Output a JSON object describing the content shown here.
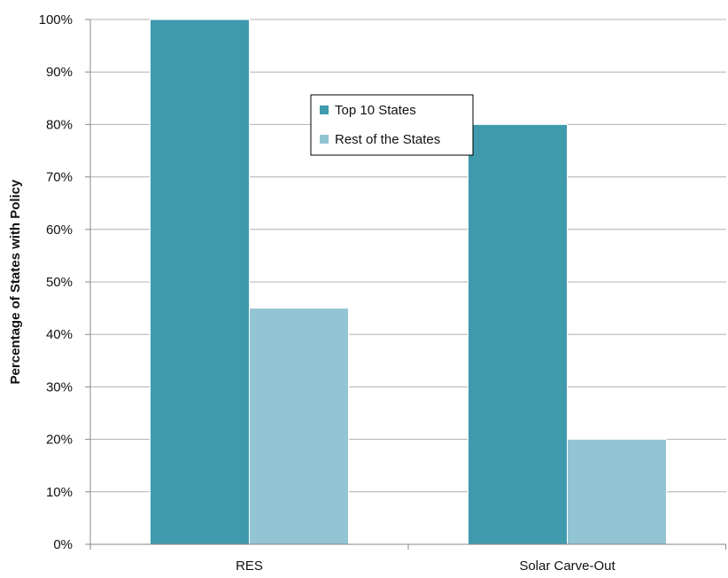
{
  "chart_data": {
    "type": "bar",
    "categories": [
      "RES",
      "Solar Carve-Out"
    ],
    "series": [
      {
        "name": "Top 10 States",
        "values": [
          100,
          80
        ],
        "color": "#3f9aae"
      },
      {
        "name": "Rest of the States",
        "values": [
          45,
          20
        ],
        "color": "#92c4d3"
      }
    ],
    "title": "",
    "xlabel": "",
    "ylabel": "Percentage of States with Policy",
    "ylim": [
      0,
      100
    ],
    "y_ticks": [
      0,
      10,
      20,
      30,
      40,
      50,
      60,
      70,
      80,
      90,
      100
    ],
    "y_tick_labels": [
      "0%",
      "10%",
      "20%",
      "30%",
      "40%",
      "50%",
      "60%",
      "70%",
      "80%",
      "90%",
      "100%"
    ],
    "grid": true,
    "legend_position": "top-center",
    "colors": {
      "grid": "#b0b0b0",
      "axis": "#888888",
      "bar_edge": "#ffffff"
    }
  }
}
